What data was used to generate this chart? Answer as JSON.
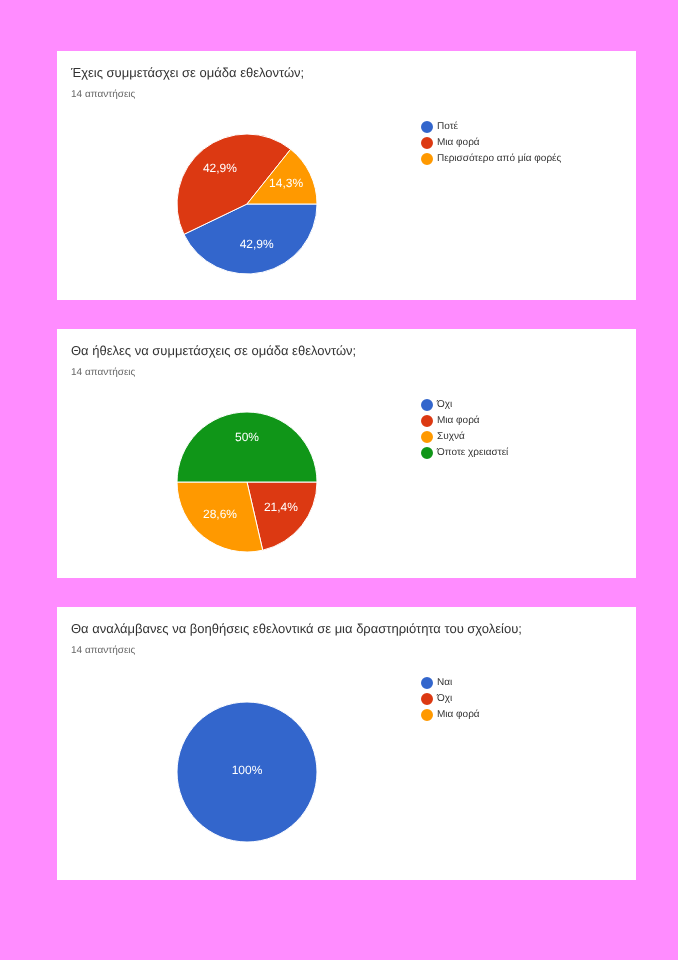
{
  "chart_data": [
    {
      "type": "pie",
      "title": "Έχεις συμμετάσχει σε ομάδα εθελοντών;",
      "subtitle": "14 απαντήσεις",
      "categories": [
        "Ποτέ",
        "Μια φορά",
        "Περισσότερο από μία φορές"
      ],
      "values": [
        42.9,
        42.9,
        14.3
      ],
      "colors": [
        "#3366cc",
        "#dc3912",
        "#ff9900"
      ],
      "value_labels": [
        "42,9%",
        "42,9%",
        "14,3%"
      ],
      "legend": "right"
    },
    {
      "type": "pie",
      "title": "Θα ήθελες να συμμετάσχεις σε ομάδα εθελοντών;",
      "subtitle": "14 απαντήσεις",
      "categories": [
        "Όχι",
        "Μια φορά",
        "Συχνά",
        "Όποτε χρειαστεί"
      ],
      "values": [
        0,
        21.4,
        28.6,
        50
      ],
      "colors": [
        "#3366cc",
        "#dc3912",
        "#ff9900",
        "#109618"
      ],
      "value_labels": [
        null,
        "21,4%",
        "28,6%",
        "50%"
      ],
      "legend": "right"
    },
    {
      "type": "pie",
      "title": "Θα αναλάμβανες να βοηθήσεις εθελοντικά σε μια δραστηριότητα του σχολείου;",
      "subtitle": "14 απαντήσεις",
      "categories": [
        "Ναι",
        "Όχι",
        "Μια φορά"
      ],
      "values": [
        100,
        0,
        0
      ],
      "colors": [
        "#3366cc",
        "#dc3912",
        "#ff9900"
      ],
      "value_labels": [
        "100%",
        null,
        null
      ],
      "legend": "right"
    }
  ]
}
